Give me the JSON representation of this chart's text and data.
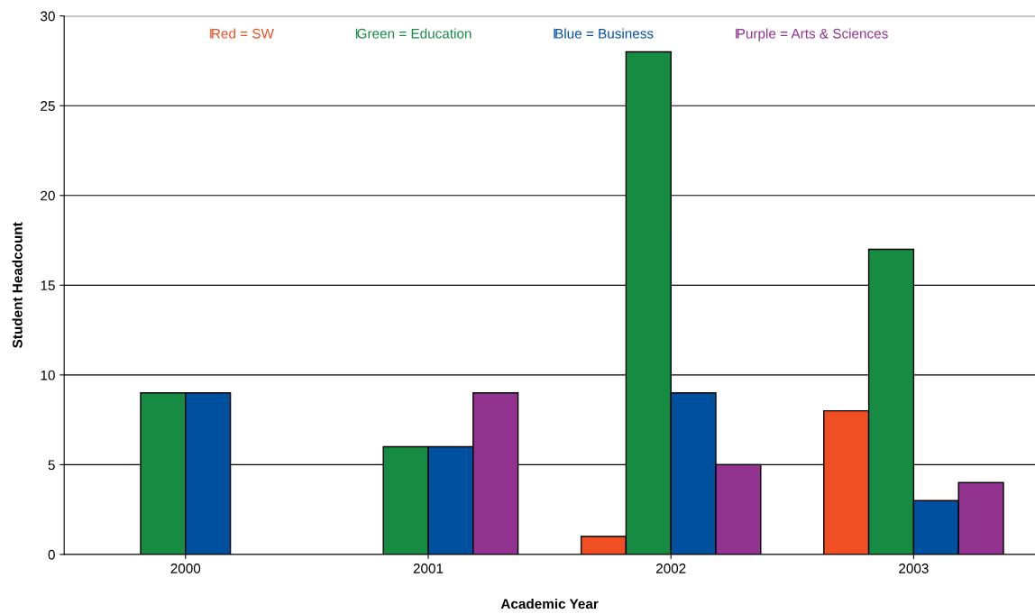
{
  "chart_data": {
    "type": "bar",
    "xlabel": "Academic Year",
    "ylabel": "Student Headcount",
    "categories": [
      "2000",
      "2001",
      "2002",
      "2003"
    ],
    "series": [
      {
        "name": "Red = SW",
        "color": "#f04e23",
        "values": [
          null,
          null,
          1,
          8
        ]
      },
      {
        "name": "Green = Education",
        "color": "#168c43",
        "values": [
          9,
          6,
          28,
          17
        ]
      },
      {
        "name": "Blue = Business",
        "color": "#0050a0",
        "values": [
          9,
          6,
          9,
          3
        ]
      },
      {
        "name": "Purple = Arts & Sciences",
        "color": "#91338f",
        "values": [
          null,
          9,
          5,
          4
        ]
      }
    ],
    "ylim": [
      0,
      30
    ],
    "yticks": [
      0,
      5,
      10,
      15,
      20,
      25,
      30
    ],
    "grid": "y",
    "legend": "top"
  }
}
